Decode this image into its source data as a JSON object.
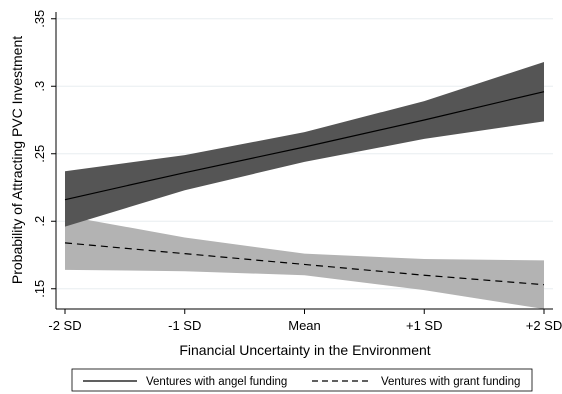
{
  "chart_data": {
    "type": "line",
    "xlabel": "Financial Uncertainty in the Environment",
    "ylabel": "Probability of Attracting PVC Investment",
    "categories": [
      "-2 SD",
      "-1 SD",
      "Mean",
      "+1 SD",
      "+2 SD"
    ],
    "ylim": [
      0.135,
      0.355
    ],
    "y_ticks": [
      0.15,
      0.2,
      0.25,
      0.3,
      0.35
    ],
    "y_tick_labels": [
      ".15",
      ".2",
      ".25",
      ".3",
      ".35"
    ],
    "grid": true,
    "legend_position": "bottom",
    "series": [
      {
        "name": "Ventures with angel funding",
        "line_style": "solid",
        "values": [
          0.216,
          0.236,
          0.255,
          0.275,
          0.296
        ],
        "ci_lower": [
          0.196,
          0.223,
          0.244,
          0.261,
          0.274
        ],
        "ci_upper": [
          0.237,
          0.249,
          0.266,
          0.289,
          0.318
        ],
        "band_color": "#555555"
      },
      {
        "name": "Ventures with grant funding",
        "line_style": "dashed",
        "values": [
          0.184,
          0.176,
          0.168,
          0.16,
          0.153
        ],
        "ci_lower": [
          0.164,
          0.163,
          0.16,
          0.149,
          0.135
        ],
        "ci_upper": [
          0.204,
          0.188,
          0.176,
          0.172,
          0.171
        ],
        "band_color": "#b3b3b3"
      }
    ]
  }
}
